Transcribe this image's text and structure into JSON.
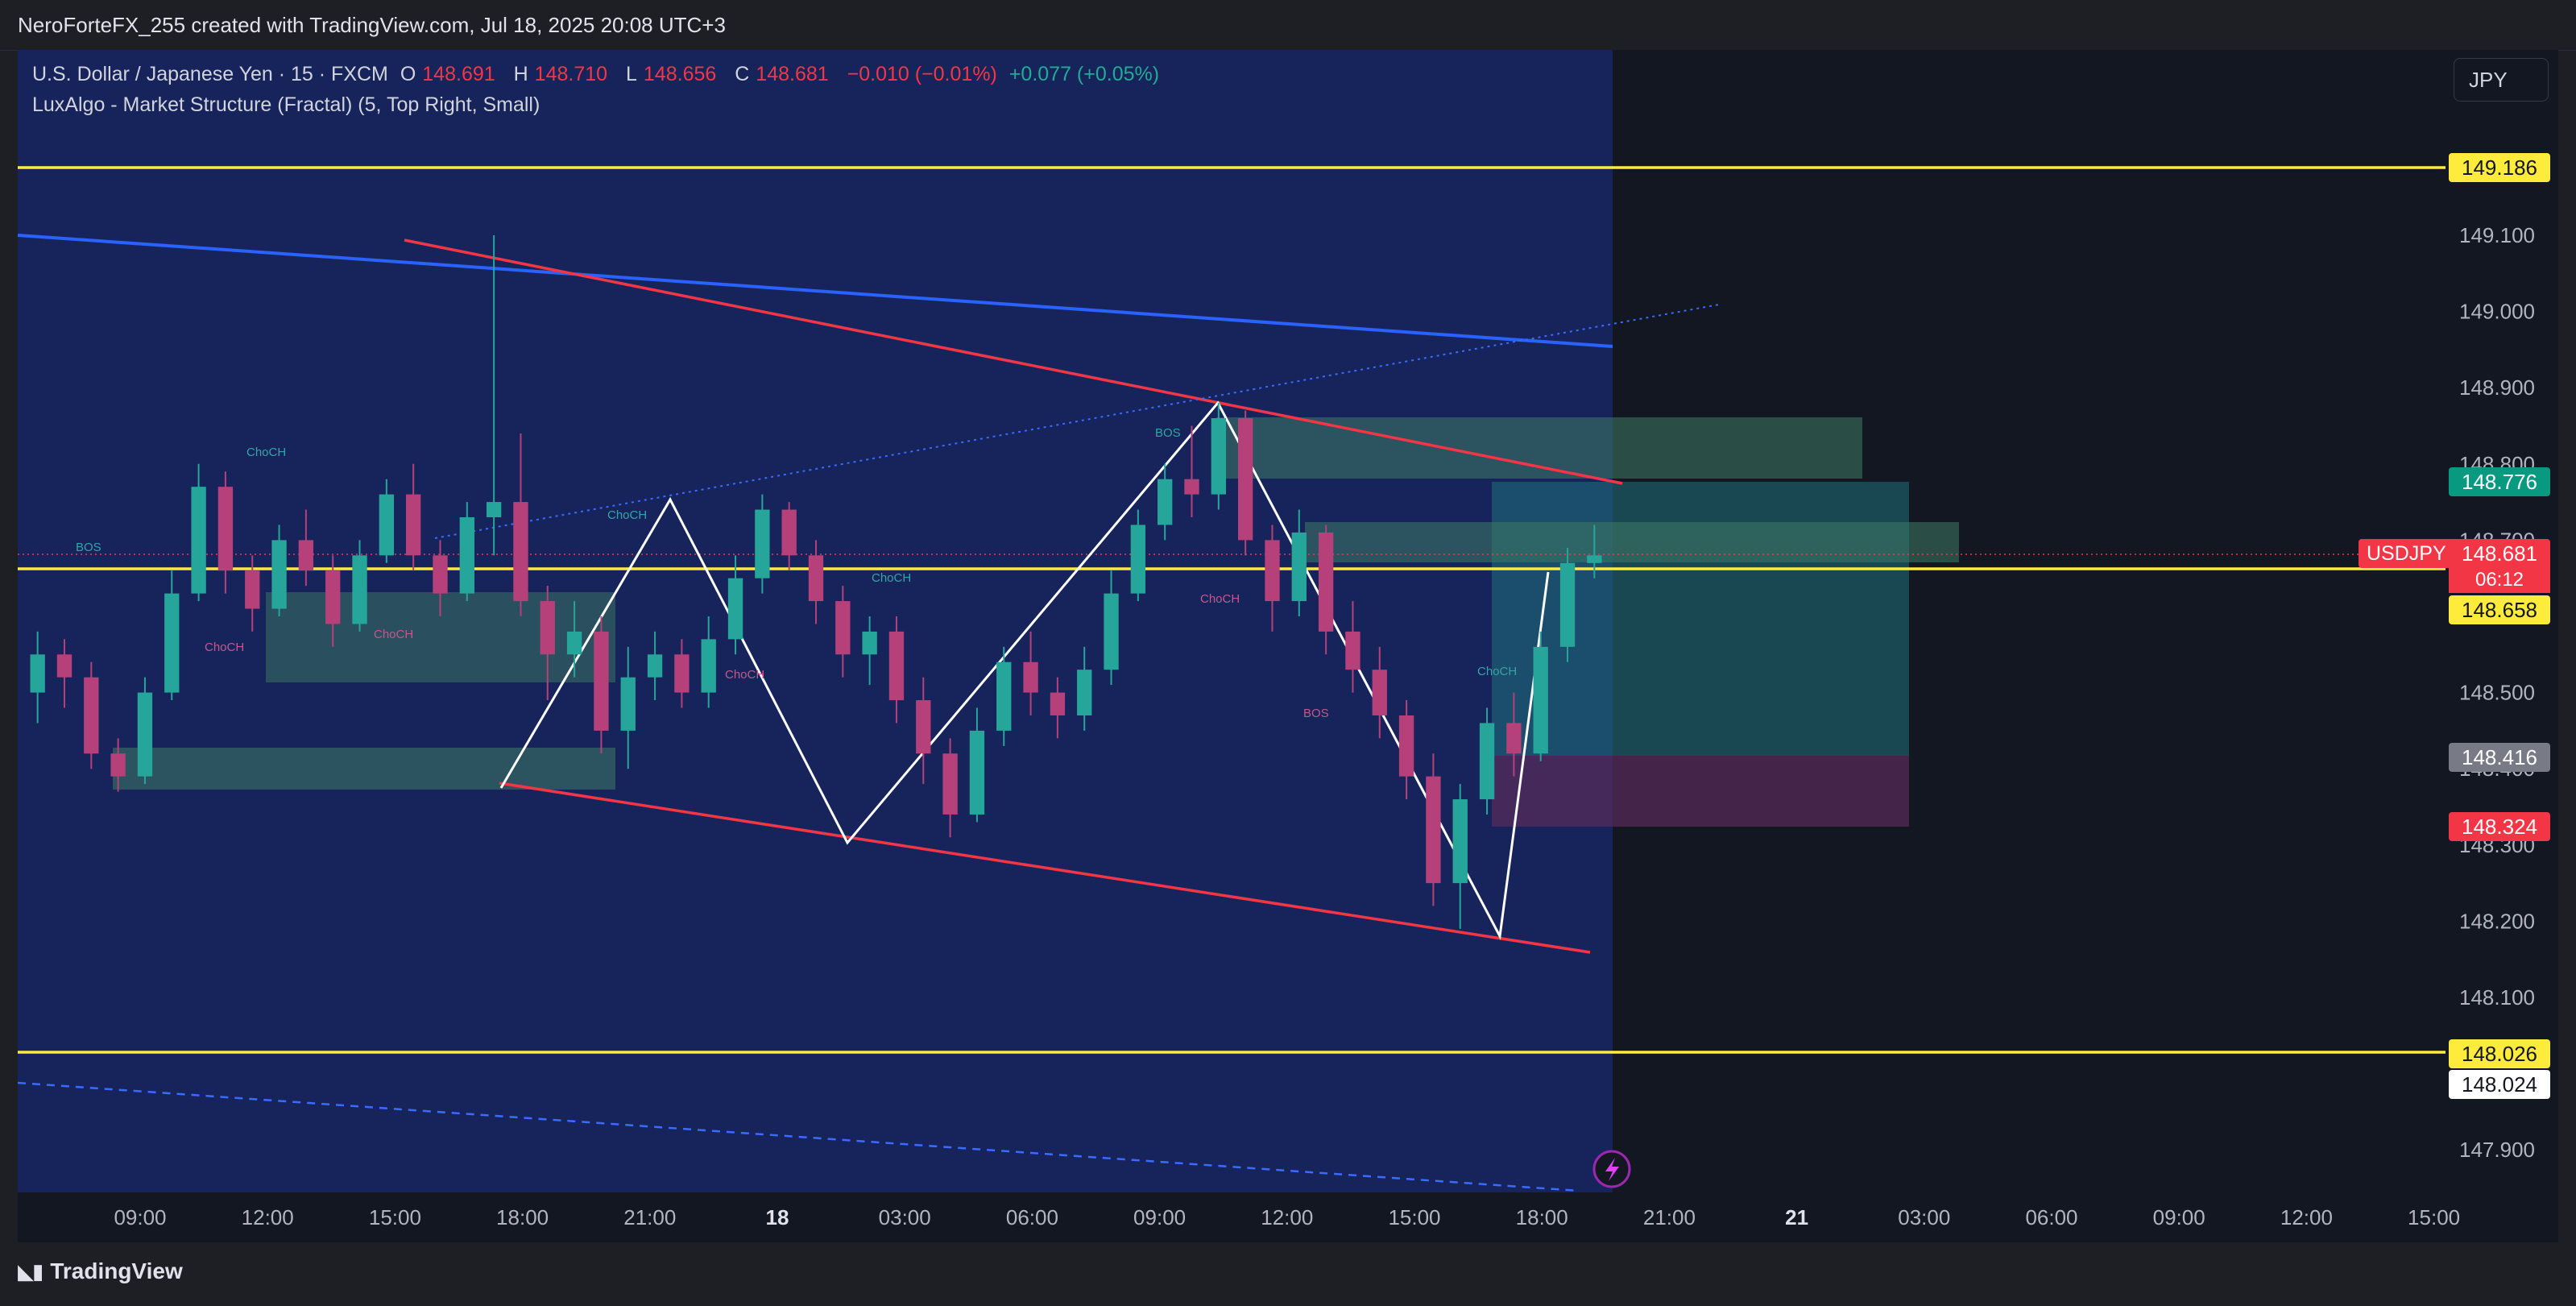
{
  "header": {
    "title": "NeroForteFX_255 created with TradingView.com, Jul 18, 2025 20:08 UTC+3"
  },
  "legend": {
    "symbol": "U.S. Dollar / Japanese Yen · 15 · FXCM",
    "open_label": "O",
    "open": "148.691",
    "high_label": "H",
    "high": "148.710",
    "low_label": "L",
    "low": "148.656",
    "close_label": "C",
    "close": "148.681",
    "change": "−0.010 (−0.01%)",
    "change2": "+0.077 (+0.05%)",
    "indicator": "LuxAlgo - Market Structure (Fractal) (5, Top Right, Small)"
  },
  "currency_button": "JPY",
  "price_badges": {
    "top_line": "149.186",
    "tp_line": "148.776",
    "symbol": "USDJPY",
    "last": "148.681",
    "countdown": "06:12",
    "yellow_mid": "148.658",
    "entry": "148.416",
    "stop": "148.324",
    "bottom_line": "148.026",
    "bottom_line2": "148.024"
  },
  "watermark": "TradingView",
  "structure_labels": [
    "BOS",
    "ChoCH",
    "ChoCH",
    "ChoCH",
    "ChoCH",
    "ChoCH",
    "ChoCH",
    "ChoCH",
    "BOS",
    "ChoCH",
    "BOS",
    "ChoCH"
  ],
  "colors": {
    "bull": "#26a69a",
    "bear": "#b6407a",
    "yellow": "#ffeb3b",
    "blue_line": "#2962ff",
    "red_line": "#f23645",
    "background": "#131722"
  },
  "chart_data": {
    "type": "candlestick",
    "symbol": "USDJPY",
    "timeframe": "15",
    "y_ticks": [
      "149.100",
      "149.000",
      "148.900",
      "148.800",
      "148.700",
      "148.500",
      "148.400",
      "148.300",
      "148.200",
      "148.100",
      "147.900"
    ],
    "ylim": [
      147.85,
      149.25
    ],
    "x_ticks": [
      "09:00",
      "12:00",
      "15:00",
      "18:00",
      "21:00",
      "18",
      "03:00",
      "06:00",
      "09:00",
      "12:00",
      "15:00",
      "18:00",
      "21:00",
      "21",
      "03:00",
      "06:00",
      "09:00",
      "12:00",
      "15:00"
    ],
    "horizontal_levels": [
      149.186,
      148.658,
      148.026
    ],
    "candles": [
      [
        148.5,
        148.58,
        148.46,
        148.55
      ],
      [
        148.55,
        148.57,
        148.48,
        148.52
      ],
      [
        148.52,
        148.54,
        148.4,
        148.42
      ],
      [
        148.42,
        148.44,
        148.37,
        148.39
      ],
      [
        148.39,
        148.52,
        148.38,
        148.5
      ],
      [
        148.5,
        148.66,
        148.49,
        148.63
      ],
      [
        148.63,
        148.8,
        148.62,
        148.77
      ],
      [
        148.77,
        148.79,
        148.63,
        148.66
      ],
      [
        148.66,
        148.68,
        148.58,
        148.61
      ],
      [
        148.61,
        148.72,
        148.6,
        148.7
      ],
      [
        148.7,
        148.74,
        148.64,
        148.66
      ],
      [
        148.66,
        148.68,
        148.56,
        148.59
      ],
      [
        148.59,
        148.7,
        148.58,
        148.68
      ],
      [
        148.68,
        148.78,
        148.67,
        148.76
      ],
      [
        148.76,
        148.8,
        148.66,
        148.68
      ],
      [
        148.68,
        148.7,
        148.6,
        148.63
      ],
      [
        148.63,
        148.75,
        148.62,
        148.73
      ],
      [
        148.73,
        149.1,
        148.68,
        148.75
      ],
      [
        148.75,
        148.84,
        148.6,
        148.62
      ],
      [
        148.62,
        148.64,
        148.49,
        148.55
      ],
      [
        148.55,
        148.62,
        148.52,
        148.58
      ],
      [
        148.58,
        148.6,
        148.42,
        148.45
      ],
      [
        148.45,
        148.56,
        148.4,
        148.52
      ],
      [
        148.52,
        148.58,
        148.49,
        148.55
      ],
      [
        148.55,
        148.57,
        148.48,
        148.5
      ],
      [
        148.5,
        148.6,
        148.48,
        148.57
      ],
      [
        148.57,
        148.68,
        148.55,
        148.65
      ],
      [
        148.65,
        148.76,
        148.63,
        148.74
      ],
      [
        148.74,
        148.75,
        148.66,
        148.68
      ],
      [
        148.68,
        148.7,
        148.59,
        148.62
      ],
      [
        148.62,
        148.64,
        148.52,
        148.55
      ],
      [
        148.55,
        148.6,
        148.51,
        148.58
      ],
      [
        148.58,
        148.6,
        148.46,
        148.49
      ],
      [
        148.49,
        148.52,
        148.38,
        148.42
      ],
      [
        148.42,
        148.44,
        148.31,
        148.34
      ],
      [
        148.34,
        148.48,
        148.33,
        148.45
      ],
      [
        148.45,
        148.56,
        148.43,
        148.54
      ],
      [
        148.54,
        148.58,
        148.47,
        148.5
      ],
      [
        148.5,
        148.52,
        148.44,
        148.47
      ],
      [
        148.47,
        148.56,
        148.45,
        148.53
      ],
      [
        148.53,
        148.66,
        148.51,
        148.63
      ],
      [
        148.63,
        148.74,
        148.62,
        148.72
      ],
      [
        148.72,
        148.8,
        148.7,
        148.78
      ],
      [
        148.78,
        148.85,
        148.73,
        148.76
      ],
      [
        148.76,
        148.88,
        148.74,
        148.86
      ],
      [
        148.86,
        148.87,
        148.68,
        148.7
      ],
      [
        148.7,
        148.72,
        148.58,
        148.62
      ],
      [
        148.62,
        148.74,
        148.6,
        148.71
      ],
      [
        148.71,
        148.72,
        148.55,
        148.58
      ],
      [
        148.58,
        148.62,
        148.5,
        148.53
      ],
      [
        148.53,
        148.56,
        148.44,
        148.47
      ],
      [
        148.47,
        148.49,
        148.36,
        148.39
      ],
      [
        148.39,
        148.42,
        148.22,
        148.25
      ],
      [
        148.25,
        148.38,
        148.19,
        148.36
      ],
      [
        148.36,
        148.48,
        148.34,
        148.46
      ],
      [
        148.46,
        148.5,
        148.39,
        148.42
      ],
      [
        148.42,
        148.58,
        148.41,
        148.56
      ],
      [
        148.56,
        148.69,
        148.54,
        148.67
      ],
      [
        148.67,
        148.72,
        148.65,
        148.68
      ]
    ]
  }
}
